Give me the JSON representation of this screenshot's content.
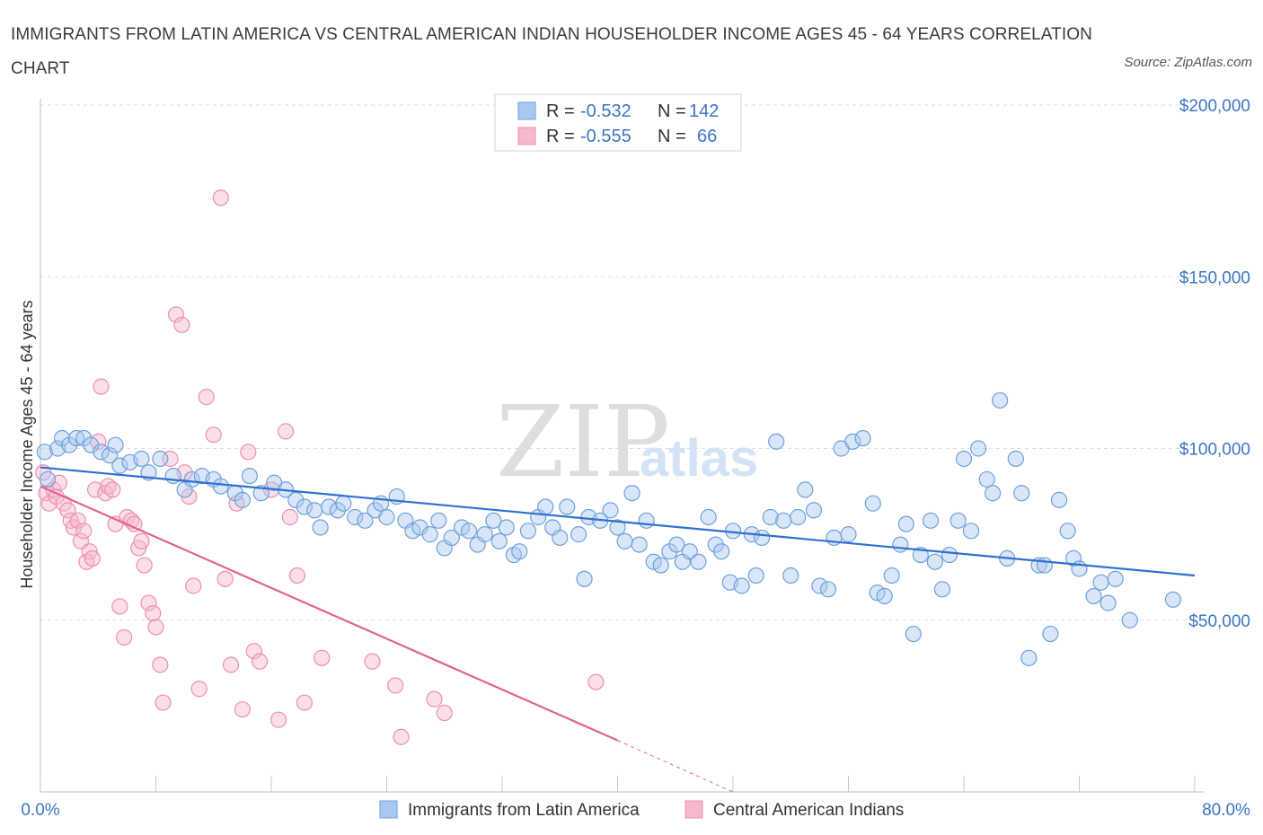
{
  "header": {
    "title": "IMMIGRANTS FROM LATIN AMERICA VS CENTRAL AMERICAN INDIAN HOUSEHOLDER INCOME AGES 45 - 64 YEARS CORRELATION CHART",
    "source": "Source: ZipAtlas.com"
  },
  "watermark": {
    "zip": "ZIP",
    "atlas": "atlas"
  },
  "legend": {
    "rows": [
      {
        "r_label": "R = ",
        "r_value": "-0.532",
        "n_label": "N = ",
        "n_value": "142"
      },
      {
        "r_label": "R = ",
        "r_value": "-0.555",
        "n_label": "N = ",
        "n_value": "66"
      }
    ]
  },
  "colors": {
    "blue_fill": "#a9c8f0",
    "blue_stroke": "#6fa0dc",
    "blue_line": "#2f70d0",
    "pink_fill": "#f6b8cb",
    "pink_stroke": "#ee8fae",
    "pink_line": "#e2628e",
    "grid": "#dddddd",
    "axis_label": "#3a75c4"
  },
  "chart_data": {
    "type": "scatter",
    "title": "IMMIGRANTS FROM LATIN AMERICA VS CENTRAL AMERICAN INDIAN HOUSEHOLDER INCOME AGES 45 - 64 YEARS CORRELATION CHART",
    "xlabel": "",
    "ylabel": "Householder Income Ages 45 - 64 years",
    "xlim": [
      0,
      80
    ],
    "ylim": [
      0,
      200000
    ],
    "x_tick_labels": [
      "0.0%",
      "80.0%"
    ],
    "y_ticks": [
      50000,
      100000,
      150000,
      200000
    ],
    "y_tick_labels": [
      "$50,000",
      "$100,000",
      "$150,000",
      "$200,000"
    ],
    "grid": true,
    "legend_position": "top-center",
    "series": [
      {
        "name": "Immigrants from Latin America",
        "color": "#6fa0dc",
        "trend": {
          "x": [
            0,
            80
          ],
          "y": [
            94500,
            63000
          ]
        },
        "points": [
          [
            0.3,
            99000
          ],
          [
            0.5,
            91000
          ],
          [
            1.2,
            100000
          ],
          [
            1.5,
            103000
          ],
          [
            2.0,
            101000
          ],
          [
            2.5,
            103000
          ],
          [
            3.0,
            103000
          ],
          [
            3.5,
            101000
          ],
          [
            4.2,
            99000
          ],
          [
            4.8,
            98000
          ],
          [
            5.2,
            101000
          ],
          [
            5.5,
            95000
          ],
          [
            6.2,
            96000
          ],
          [
            7.0,
            97000
          ],
          [
            7.5,
            93000
          ],
          [
            8.3,
            97000
          ],
          [
            9.2,
            92000
          ],
          [
            10.0,
            88000
          ],
          [
            10.5,
            91000
          ],
          [
            11.2,
            92000
          ],
          [
            12.0,
            91000
          ],
          [
            12.5,
            89000
          ],
          [
            13.5,
            87000
          ],
          [
            14.0,
            85000
          ],
          [
            14.5,
            92000
          ],
          [
            15.3,
            87000
          ],
          [
            16.2,
            90000
          ],
          [
            17.0,
            88000
          ],
          [
            17.7,
            85000
          ],
          [
            18.3,
            83000
          ],
          [
            19.0,
            82000
          ],
          [
            19.4,
            77000
          ],
          [
            20.0,
            83000
          ],
          [
            20.6,
            82000
          ],
          [
            21.0,
            84000
          ],
          [
            21.8,
            80000
          ],
          [
            22.5,
            79000
          ],
          [
            23.2,
            82000
          ],
          [
            23.6,
            84000
          ],
          [
            24.0,
            80000
          ],
          [
            24.7,
            86000
          ],
          [
            25.3,
            79000
          ],
          [
            25.8,
            76000
          ],
          [
            26.3,
            77000
          ],
          [
            27.0,
            75000
          ],
          [
            27.6,
            79000
          ],
          [
            28.0,
            71000
          ],
          [
            28.5,
            74000
          ],
          [
            29.2,
            77000
          ],
          [
            29.7,
            76000
          ],
          [
            30.3,
            72000
          ],
          [
            30.8,
            75000
          ],
          [
            31.4,
            79000
          ],
          [
            31.8,
            73000
          ],
          [
            32.3,
            77000
          ],
          [
            32.8,
            69000
          ],
          [
            33.2,
            70000
          ],
          [
            33.8,
            76000
          ],
          [
            34.5,
            80000
          ],
          [
            35.0,
            83000
          ],
          [
            35.5,
            77000
          ],
          [
            36.0,
            74000
          ],
          [
            36.5,
            83000
          ],
          [
            37.3,
            75000
          ],
          [
            37.7,
            62000
          ],
          [
            38.0,
            80000
          ],
          [
            38.8,
            79000
          ],
          [
            39.5,
            82000
          ],
          [
            40.0,
            77000
          ],
          [
            40.5,
            73000
          ],
          [
            41.0,
            87000
          ],
          [
            41.5,
            72000
          ],
          [
            42.0,
            79000
          ],
          [
            42.5,
            67000
          ],
          [
            43.0,
            66000
          ],
          [
            43.6,
            70000
          ],
          [
            44.1,
            72000
          ],
          [
            44.5,
            67000
          ],
          [
            45.0,
            70000
          ],
          [
            45.6,
            67000
          ],
          [
            46.3,
            80000
          ],
          [
            46.8,
            72000
          ],
          [
            47.2,
            70000
          ],
          [
            47.8,
            61000
          ],
          [
            48.0,
            76000
          ],
          [
            48.6,
            60000
          ],
          [
            49.3,
            75000
          ],
          [
            49.6,
            63000
          ],
          [
            50.0,
            74000
          ],
          [
            50.6,
            80000
          ],
          [
            51.0,
            102000
          ],
          [
            51.5,
            79000
          ],
          [
            52.0,
            63000
          ],
          [
            52.5,
            80000
          ],
          [
            53.0,
            88000
          ],
          [
            53.6,
            82000
          ],
          [
            54.0,
            60000
          ],
          [
            54.6,
            59000
          ],
          [
            55.0,
            74000
          ],
          [
            55.5,
            100000
          ],
          [
            56.0,
            75000
          ],
          [
            56.3,
            102000
          ],
          [
            57.0,
            103000
          ],
          [
            57.7,
            84000
          ],
          [
            58.0,
            58000
          ],
          [
            58.5,
            57000
          ],
          [
            59.0,
            63000
          ],
          [
            59.6,
            72000
          ],
          [
            60.0,
            78000
          ],
          [
            60.5,
            46000
          ],
          [
            61.0,
            69000
          ],
          [
            61.7,
            79000
          ],
          [
            62.0,
            67000
          ],
          [
            62.5,
            59000
          ],
          [
            63.0,
            69000
          ],
          [
            63.6,
            79000
          ],
          [
            64.0,
            97000
          ],
          [
            64.5,
            76000
          ],
          [
            65.0,
            100000
          ],
          [
            65.6,
            91000
          ],
          [
            66.0,
            87000
          ],
          [
            66.5,
            114000
          ],
          [
            67.0,
            68000
          ],
          [
            67.6,
            97000
          ],
          [
            68.0,
            87000
          ],
          [
            68.5,
            39000
          ],
          [
            69.2,
            66000
          ],
          [
            69.6,
            66000
          ],
          [
            70.0,
            46000
          ],
          [
            70.6,
            85000
          ],
          [
            71.2,
            76000
          ],
          [
            71.6,
            68000
          ],
          [
            72.0,
            65000
          ],
          [
            73.0,
            57000
          ],
          [
            73.5,
            61000
          ],
          [
            74.0,
            55000
          ],
          [
            74.5,
            62000
          ],
          [
            75.5,
            50000
          ],
          [
            78.5,
            56000
          ]
        ]
      },
      {
        "name": "Central American Indians",
        "color": "#ee8fae",
        "trend": {
          "x": [
            0,
            40
          ],
          "y": [
            89000,
            15000
          ]
        },
        "trend_dashed": {
          "x": [
            40,
            48
          ],
          "y": [
            15000,
            0
          ]
        },
        "points": [
          [
            0.2,
            93000
          ],
          [
            0.4,
            87000
          ],
          [
            0.6,
            84000
          ],
          [
            0.9,
            88000
          ],
          [
            1.1,
            86000
          ],
          [
            1.3,
            90000
          ],
          [
            1.6,
            84000
          ],
          [
            1.9,
            82000
          ],
          [
            2.1,
            79000
          ],
          [
            2.3,
            77000
          ],
          [
            2.6,
            79000
          ],
          [
            2.8,
            73000
          ],
          [
            3.0,
            76000
          ],
          [
            3.2,
            67000
          ],
          [
            3.4,
            70000
          ],
          [
            3.6,
            68000
          ],
          [
            3.8,
            88000
          ],
          [
            4.0,
            102000
          ],
          [
            4.2,
            118000
          ],
          [
            4.5,
            87000
          ],
          [
            4.7,
            89000
          ],
          [
            5.0,
            88000
          ],
          [
            5.2,
            78000
          ],
          [
            5.5,
            54000
          ],
          [
            5.8,
            45000
          ],
          [
            6.0,
            80000
          ],
          [
            6.3,
            79000
          ],
          [
            6.5,
            78000
          ],
          [
            6.8,
            71000
          ],
          [
            7.0,
            73000
          ],
          [
            7.2,
            66000
          ],
          [
            7.5,
            55000
          ],
          [
            7.8,
            52000
          ],
          [
            8.0,
            48000
          ],
          [
            8.3,
            37000
          ],
          [
            8.5,
            26000
          ],
          [
            9.0,
            97000
          ],
          [
            9.4,
            139000
          ],
          [
            9.8,
            136000
          ],
          [
            10.0,
            93000
          ],
          [
            10.3,
            86000
          ],
          [
            10.6,
            60000
          ],
          [
            11.0,
            30000
          ],
          [
            11.5,
            115000
          ],
          [
            12.0,
            104000
          ],
          [
            12.5,
            173000
          ],
          [
            12.8,
            62000
          ],
          [
            13.2,
            37000
          ],
          [
            13.6,
            84000
          ],
          [
            14.0,
            24000
          ],
          [
            14.4,
            99000
          ],
          [
            14.8,
            41000
          ],
          [
            15.2,
            38000
          ],
          [
            16.0,
            88000
          ],
          [
            16.5,
            21000
          ],
          [
            17.0,
            105000
          ],
          [
            17.3,
            80000
          ],
          [
            17.8,
            63000
          ],
          [
            18.3,
            26000
          ],
          [
            19.5,
            39000
          ],
          [
            23.0,
            38000
          ],
          [
            24.6,
            31000
          ],
          [
            25.0,
            16000
          ],
          [
            27.3,
            27000
          ],
          [
            28.0,
            23000
          ],
          [
            38.5,
            32000
          ]
        ]
      }
    ]
  },
  "axis": {
    "y_title": "Householder Income Ages 45 - 64 years",
    "x_left": "0.0%",
    "x_right": "80.0%",
    "y_ticks": [
      "$50,000",
      "$100,000",
      "$150,000",
      "$200,000"
    ]
  },
  "bottom_legend": {
    "series1": "Immigrants from Latin America",
    "series2": "Central American Indians"
  }
}
